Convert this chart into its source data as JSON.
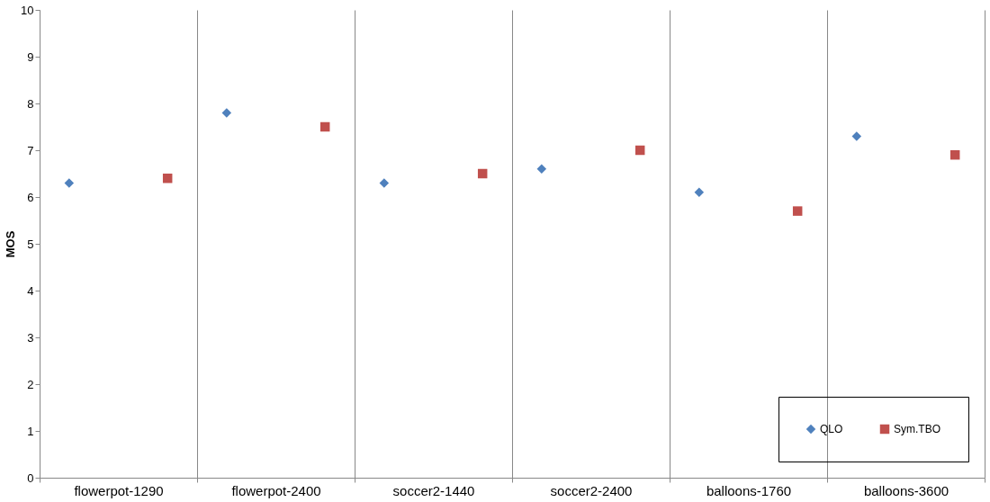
{
  "chart_data": {
    "type": "scatter",
    "ylabel": "MOS",
    "categories": [
      "flowerpot-1290",
      "flowerpot-2400",
      "soccer2-1440",
      "soccer2-2400",
      "balloons-1760",
      "balloons-3600"
    ],
    "series": [
      {
        "name": "QLO",
        "color": "#4f81bd",
        "marker": "diamond",
        "values": [
          6.3,
          7.8,
          6.3,
          6.6,
          6.1,
          7.3
        ]
      },
      {
        "name": "Sym.TBO",
        "color": "#c0504d",
        "marker": "square",
        "values": [
          6.4,
          7.5,
          6.5,
          7.0,
          5.7,
          6.9
        ]
      }
    ],
    "ylim": [
      0,
      10
    ],
    "yticks": [
      0,
      1,
      2,
      3,
      4,
      5,
      6,
      7,
      8,
      9,
      10
    ],
    "grid": "x",
    "legend": "bottom right"
  }
}
